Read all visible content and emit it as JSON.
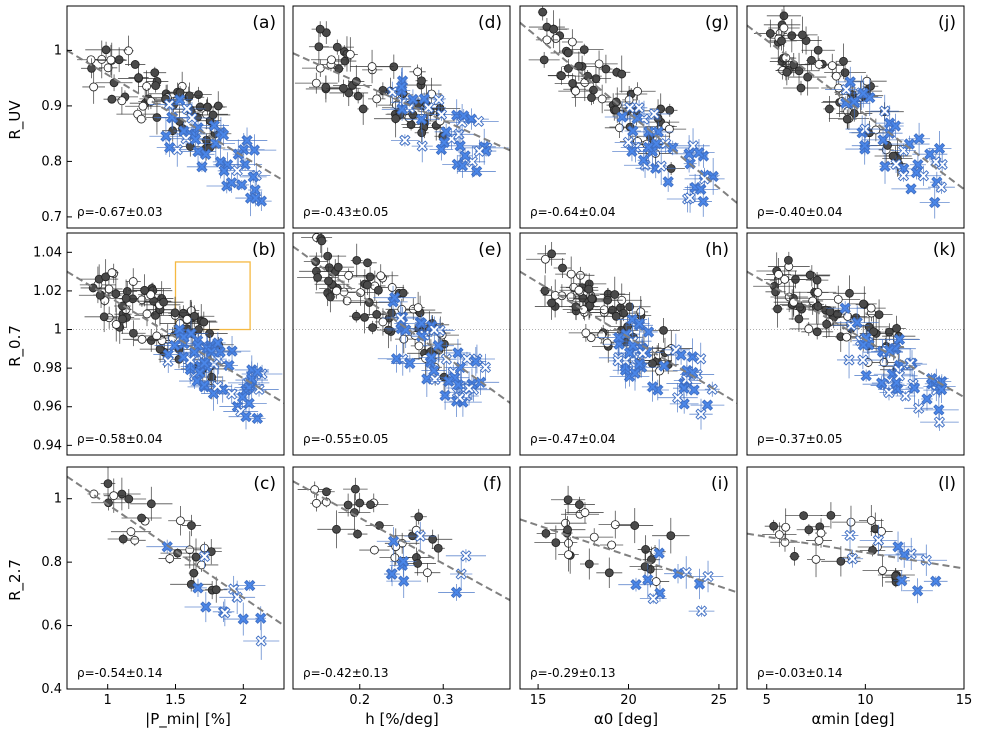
{
  "figure": {
    "xlabels": [
      "|P_min| [%]",
      "h [%/deg]",
      "α0 [deg]",
      "αmin [deg]"
    ],
    "ylabels": [
      "R_UV",
      "R_0.7",
      "R_2.7"
    ]
  },
  "chart_data": [
    {
      "panel": "a",
      "type": "scatter",
      "label": "(a)",
      "rho": "ρ=-0.67±0.03",
      "row": 0,
      "col": 0,
      "xlim": [
        0.7,
        2.3
      ],
      "ylim": [
        0.68,
        1.08
      ],
      "xticks": [],
      "yticks": [
        0.7,
        0.8,
        0.9,
        1.0
      ],
      "trend": [
        [
          0.7,
          1.0
        ],
        [
          2.3,
          0.765
        ]
      ],
      "seed": 11,
      "n_dark": 60,
      "n_blue": 40
    },
    {
      "panel": "d",
      "type": "scatter",
      "label": "(d)",
      "rho": "ρ=-0.43±0.05",
      "row": 0,
      "col": 1,
      "xlim": [
        0.12,
        0.38
      ],
      "ylim": [
        0.68,
        1.08
      ],
      "xticks": [],
      "yticks": [],
      "trend": [
        [
          0.12,
          0.995
        ],
        [
          0.38,
          0.82
        ]
      ],
      "seed": 12,
      "n_dark": 55,
      "n_blue": 35
    },
    {
      "panel": "g",
      "type": "scatter",
      "label": "(g)",
      "rho": "ρ=-0.64±0.04",
      "row": 0,
      "col": 2,
      "xlim": [
        14,
        26
      ],
      "ylim": [
        0.68,
        1.08
      ],
      "xticks": [],
      "yticks": [],
      "trend": [
        [
          14,
          1.05
        ],
        [
          26,
          0.725
        ]
      ],
      "seed": 13,
      "n_dark": 55,
      "n_blue": 35
    },
    {
      "panel": "j",
      "type": "scatter",
      "label": "(j)",
      "rho": "ρ=-0.40±0.04",
      "row": 0,
      "col": 3,
      "xlim": [
        4,
        15
      ],
      "ylim": [
        0.68,
        1.08
      ],
      "xticks": [],
      "yticks": [],
      "trend": [
        [
          4,
          1.045
        ],
        [
          15,
          0.75
        ]
      ],
      "seed": 14,
      "n_dark": 55,
      "n_blue": 35
    },
    {
      "panel": "b",
      "type": "scatter",
      "label": "(b)",
      "rho": "ρ=-0.58±0.04",
      "row": 1,
      "col": 0,
      "xlim": [
        0.7,
        2.3
      ],
      "ylim": [
        0.935,
        1.05
      ],
      "xticks": [],
      "yticks": [
        0.94,
        0.96,
        0.98,
        1.0,
        1.02,
        1.04
      ],
      "trend": [
        [
          0.7,
          1.03
        ],
        [
          2.3,
          0.962
        ]
      ],
      "refline": 1.0,
      "box": {
        "x": [
          1.5,
          2.05
        ],
        "y": [
          1.0,
          1.035
        ]
      },
      "seed": 21,
      "n_dark": 75,
      "n_blue": 55
    },
    {
      "panel": "e",
      "type": "scatter",
      "label": "(e)",
      "rho": "ρ=-0.55±0.05",
      "row": 1,
      "col": 1,
      "xlim": [
        0.12,
        0.38
      ],
      "ylim": [
        0.935,
        1.05
      ],
      "xticks": [],
      "yticks": [],
      "trend": [
        [
          0.12,
          1.043
        ],
        [
          0.38,
          0.962
        ]
      ],
      "refline": 1.0,
      "seed": 22,
      "n_dark": 65,
      "n_blue": 45
    },
    {
      "panel": "h",
      "type": "scatter",
      "label": "(h)",
      "rho": "ρ=-0.47±0.04",
      "row": 1,
      "col": 2,
      "xlim": [
        14,
        26
      ],
      "ylim": [
        0.935,
        1.05
      ],
      "xticks": [],
      "yticks": [],
      "trend": [
        [
          14,
          1.03
        ],
        [
          26,
          0.962
        ]
      ],
      "refline": 1.0,
      "seed": 23,
      "n_dark": 65,
      "n_blue": 45
    },
    {
      "panel": "k",
      "type": "scatter",
      "label": "(k)",
      "rho": "ρ=-0.37±0.05",
      "row": 1,
      "col": 3,
      "xlim": [
        4,
        15
      ],
      "ylim": [
        0.935,
        1.05
      ],
      "xticks": [],
      "yticks": [],
      "trend": [
        [
          4,
          1.03
        ],
        [
          15,
          0.965
        ]
      ],
      "refline": 1.0,
      "seed": 24,
      "n_dark": 65,
      "n_blue": 45
    },
    {
      "panel": "c",
      "type": "scatter",
      "label": "(c)",
      "rho": "ρ=-0.54±0.14",
      "row": 2,
      "col": 0,
      "xlim": [
        0.7,
        2.3
      ],
      "ylim": [
        0.4,
        1.1
      ],
      "xticks": [
        1.0,
        1.5,
        2.0
      ],
      "yticks": [
        0.4,
        0.6,
        0.8,
        1.0
      ],
      "trend": [
        [
          0.7,
          1.07
        ],
        [
          2.3,
          0.6
        ]
      ],
      "seed": 31,
      "n_dark": 25,
      "n_blue": 12
    },
    {
      "panel": "f",
      "type": "scatter",
      "label": "(f)",
      "rho": "ρ=-0.42±0.13",
      "row": 2,
      "col": 1,
      "xlim": [
        0.12,
        0.38
      ],
      "ylim": [
        0.4,
        1.1
      ],
      "xticks": [
        0.2,
        0.3
      ],
      "yticks": [],
      "trend": [
        [
          0.12,
          1.055
        ],
        [
          0.38,
          0.68
        ]
      ],
      "seed": 32,
      "n_dark": 25,
      "n_blue": 10
    },
    {
      "panel": "i",
      "type": "scatter",
      "label": "(i)",
      "rho": "ρ=-0.29±0.13",
      "row": 2,
      "col": 2,
      "xlim": [
        14,
        26
      ],
      "ylim": [
        0.4,
        1.1
      ],
      "xticks": [
        15,
        20,
        25
      ],
      "yticks": [],
      "trend": [
        [
          14,
          0.935
        ],
        [
          26,
          0.705
        ]
      ],
      "seed": 33,
      "n_dark": 25,
      "n_blue": 10
    },
    {
      "panel": "l",
      "type": "scatter",
      "label": "(l)",
      "rho": "ρ=-0.03±0.14",
      "row": 2,
      "col": 3,
      "xlim": [
        4,
        15
      ],
      "ylim": [
        0.4,
        1.1
      ],
      "xticks": [
        5,
        10,
        15
      ],
      "yticks": [],
      "trend": [
        [
          4,
          0.89
        ],
        [
          15,
          0.78
        ]
      ],
      "seed": 34,
      "n_dark": 25,
      "n_blue": 10
    }
  ],
  "colors": {
    "dark": "#4a4a4a",
    "blue": "#4a86e8",
    "trend": "#808080",
    "box": "#f5b942"
  }
}
